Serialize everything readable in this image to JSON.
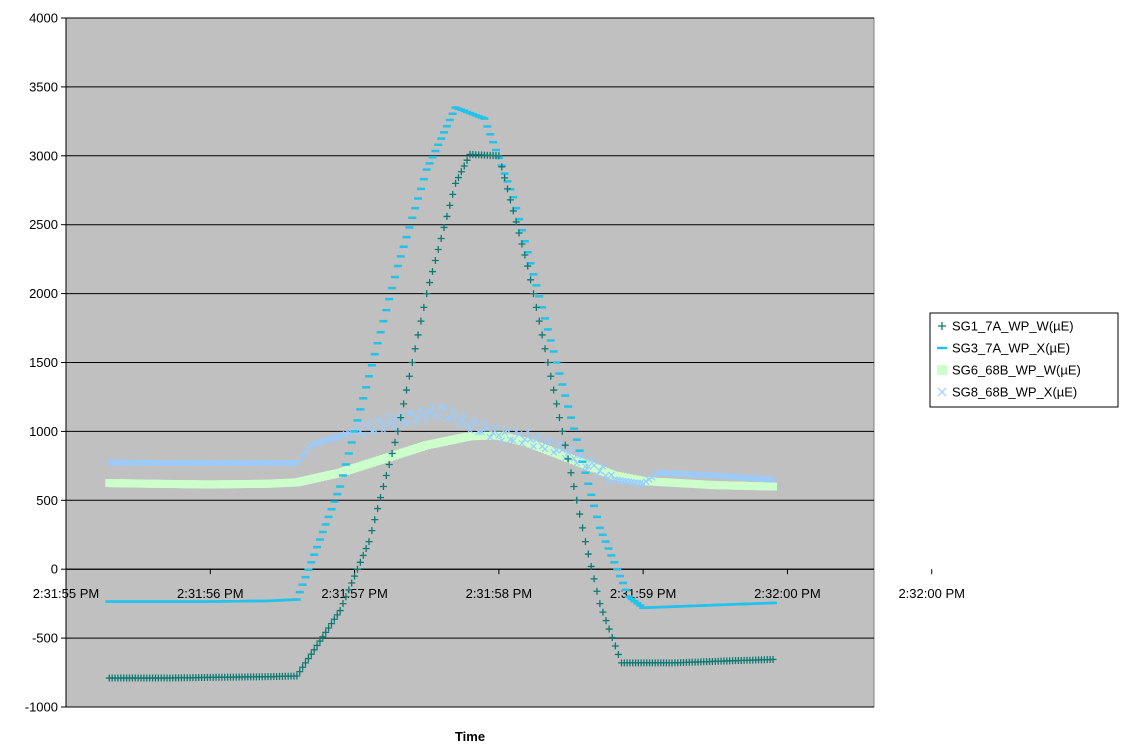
{
  "chart_data": {
    "type": "scatter",
    "title": "",
    "xlabel": "Time",
    "ylabel": "",
    "ylim": [
      -1000,
      4000
    ],
    "yticks": [
      -1000,
      -500,
      0,
      500,
      1000,
      1500,
      2000,
      2500,
      3000,
      3500,
      4000
    ],
    "xlim_seconds": [
      55,
      60.6
    ],
    "xtick_labels": [
      "2:31:55 PM",
      "2:31:56 PM",
      "2:31:57 PM",
      "2:31:58 PM",
      "2:31:59 PM",
      "2:32:00 PM",
      "2:32:00 PM"
    ],
    "grid": "horizontal",
    "plot_background": "#c0c0c0",
    "legend_position": "right",
    "series": [
      {
        "name": "SG1_7A_WP_W(µE)",
        "marker": "plus",
        "color": "#0e7a72",
        "points": [
          [
            55.3,
            -790
          ],
          [
            55.7,
            -790
          ],
          [
            56.0,
            -785
          ],
          [
            56.4,
            -780
          ],
          [
            56.6,
            -775
          ],
          [
            56.9,
            -300
          ],
          [
            57.1,
            200
          ],
          [
            57.3,
            1000
          ],
          [
            57.5,
            2000
          ],
          [
            57.7,
            2800
          ],
          [
            57.8,
            3010
          ],
          [
            58.0,
            3000
          ],
          [
            58.2,
            2200
          ],
          [
            58.4,
            1200
          ],
          [
            58.6,
            200
          ],
          [
            58.7,
            -250
          ],
          [
            58.85,
            -680
          ],
          [
            59.2,
            -680
          ],
          [
            59.6,
            -665
          ],
          [
            59.9,
            -655
          ]
        ]
      },
      {
        "name": "SG3_7A_WP_X(µE)",
        "marker": "dash",
        "color": "#22c2ea",
        "points": [
          [
            55.3,
            -235
          ],
          [
            55.7,
            -235
          ],
          [
            56.0,
            -235
          ],
          [
            56.4,
            -230
          ],
          [
            56.6,
            -220
          ],
          [
            56.7,
            50
          ],
          [
            56.9,
            600
          ],
          [
            57.1,
            1400
          ],
          [
            57.3,
            2200
          ],
          [
            57.5,
            2900
          ],
          [
            57.7,
            3350
          ],
          [
            57.9,
            3270
          ],
          [
            58.1,
            2700
          ],
          [
            58.3,
            1900
          ],
          [
            58.5,
            1100
          ],
          [
            58.7,
            300
          ],
          [
            58.9,
            -200
          ],
          [
            59.0,
            -280
          ],
          [
            59.5,
            -260
          ],
          [
            59.9,
            -245
          ]
        ]
      },
      {
        "name": "SG6_68B_WP_W(µE)",
        "marker": "square",
        "color": "#ccffcc",
        "points": [
          [
            55.3,
            625
          ],
          [
            55.6,
            620
          ],
          [
            56.0,
            615
          ],
          [
            56.4,
            620
          ],
          [
            56.6,
            630
          ],
          [
            56.9,
            700
          ],
          [
            57.2,
            800
          ],
          [
            57.5,
            900
          ],
          [
            57.8,
            965
          ],
          [
            58.0,
            970
          ],
          [
            58.2,
            920
          ],
          [
            58.5,
            800
          ],
          [
            58.8,
            680
          ],
          [
            59.0,
            640
          ],
          [
            59.5,
            610
          ],
          [
            59.9,
            600
          ]
        ]
      },
      {
        "name": "SG8_68B_WP_X(µE)",
        "marker": "x",
        "color": "#99ccff",
        "points": [
          [
            55.3,
            775
          ],
          [
            55.7,
            770
          ],
          [
            56.0,
            770
          ],
          [
            56.4,
            770
          ],
          [
            56.6,
            770
          ],
          [
            56.7,
            900
          ],
          [
            57.0,
            1000
          ],
          [
            57.3,
            1080
          ],
          [
            57.6,
            1150
          ],
          [
            57.8,
            1050
          ],
          [
            58.0,
            980
          ],
          [
            58.2,
            950
          ],
          [
            58.4,
            880
          ],
          [
            58.6,
            780
          ],
          [
            58.8,
            650
          ],
          [
            59.0,
            620
          ],
          [
            59.1,
            700
          ],
          [
            59.5,
            680
          ],
          [
            59.9,
            650
          ]
        ]
      }
    ]
  }
}
